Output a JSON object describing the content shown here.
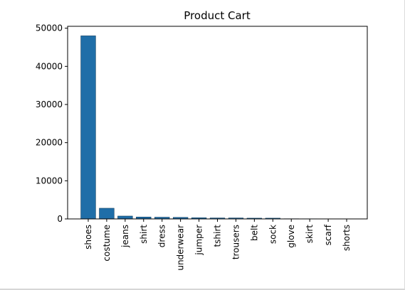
{
  "chart_data": {
    "type": "bar",
    "title": "Product Cart",
    "xlabel": "",
    "ylabel": "",
    "categories": [
      "shoes",
      "costume",
      "jeans",
      "shirt",
      "dress",
      "underwear",
      "jumper",
      "tshirt",
      "trousers",
      "belt",
      "sock",
      "glove",
      "skirt",
      "scarf",
      "shorts"
    ],
    "values": [
      48000,
      2800,
      750,
      500,
      450,
      400,
      300,
      250,
      250,
      200,
      200,
      50,
      40,
      30,
      20
    ],
    "ylim": [
      0,
      50500
    ],
    "yticks": [
      0,
      10000,
      20000,
      30000,
      40000,
      50000
    ],
    "ytick_labels": [
      "0",
      "10000",
      "20000",
      "30000",
      "40000",
      "50000"
    ],
    "bar_color": "#1f6ea8",
    "grid": false,
    "legend": "none"
  }
}
